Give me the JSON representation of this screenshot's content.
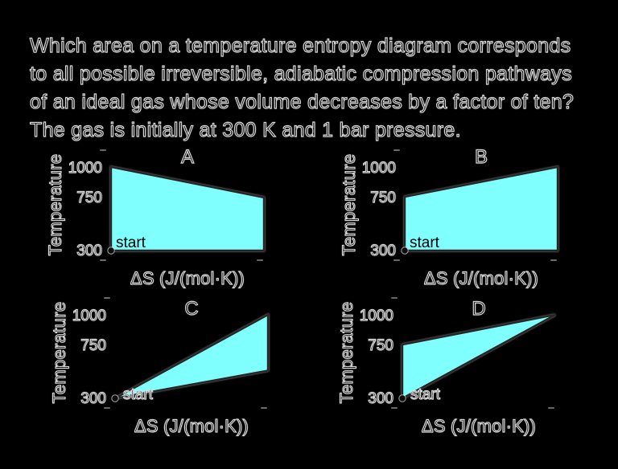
{
  "question": {
    "lines": [
      "Which area on a temperature entropy diagram corresponds",
      "to all possible irreversible, adiabatic compression pathways",
      "of an ideal gas whose volume decreases by a factor of ten?",
      "The gas is initially at 300 K and 1 bar pressure."
    ]
  },
  "axes": {
    "ylabel": "Temperature",
    "xlabel": "ΔS (J/(mol·K))",
    "yticks": [
      "1000",
      "750",
      "300"
    ]
  },
  "start_label": "start",
  "colors": {
    "background": "#000000",
    "region_fill": "#80ffff",
    "region_stroke": "#262626",
    "text_outline": "#d8d8d8",
    "tick_mark": "#6a6a6a"
  },
  "chart_data": [
    {
      "type": "area",
      "title": "A",
      "ylabel": "Temperature",
      "xlabel": "ΔS (J/(mol·K))",
      "yticks": [
        1000,
        750,
        300
      ],
      "ylim": [
        300,
        1050
      ],
      "x_axis_ticks_labeled": false,
      "x_normalized_range": [
        0,
        1
      ],
      "region_vertices": [
        [
          0,
          300
        ],
        [
          0,
          1000
        ],
        [
          1,
          745
        ],
        [
          1,
          300
        ]
      ],
      "start_point": [
        0,
        300
      ],
      "start_label": "start",
      "description": "Filled region from T=300 up to 1000 K at zero entropy change, top edge sloping down to ~745 K at maximum ΔS, closed along the 300 K baseline."
    },
    {
      "type": "area",
      "title": "B",
      "ylabel": "Temperature",
      "xlabel": "ΔS (J/(mol·K))",
      "yticks": [
        1000,
        750,
        300
      ],
      "ylim": [
        300,
        1050
      ],
      "x_axis_ticks_labeled": false,
      "x_normalized_range": [
        0,
        1
      ],
      "region_vertices": [
        [
          0,
          300
        ],
        [
          0,
          750
        ],
        [
          1,
          1000
        ],
        [
          1,
          300
        ]
      ],
      "start_point": [
        0,
        300
      ],
      "start_label": "start",
      "description": "Filled region from T=300 up to 750 K at zero entropy change, top edge rising to 1000 K at maximum ΔS, closed along the 300 K baseline."
    },
    {
      "type": "area",
      "title": "C",
      "ylabel": "Temperature",
      "xlabel": "ΔS (J/(mol·K))",
      "yticks": [
        1000,
        750,
        300
      ],
      "ylim": [
        300,
        1050
      ],
      "x_axis_ticks_labeled": false,
      "x_normalized_range": [
        0,
        1
      ],
      "region_vertices": [
        [
          0,
          300
        ],
        [
          1,
          1000
        ],
        [
          1,
          533
        ]
      ],
      "start_point": [
        0,
        300
      ],
      "start_label": "start",
      "description": "Triangular wedge from the start point at 300 K, upper edge rising to 1000 K and lower edge rising to ~533 K at maximum ΔS."
    },
    {
      "type": "area",
      "title": "D",
      "ylabel": "Temperature",
      "xlabel": "ΔS (J/(mol·K))",
      "yticks": [
        1000,
        750,
        300
      ],
      "ylim": [
        300,
        1050
      ],
      "x_axis_ticks_labeled": false,
      "x_normalized_range": [
        0,
        1
      ],
      "region_vertices": [
        [
          0,
          300
        ],
        [
          0,
          750
        ],
        [
          1,
          1000
        ]
      ],
      "start_point": [
        0,
        300
      ],
      "start_label": "start",
      "description": "Triangle with vertical left edge from 300 to 750 K at zero entropy change and apex at 1000 K at maximum ΔS, hypotenuse returning to the start point."
    }
  ]
}
